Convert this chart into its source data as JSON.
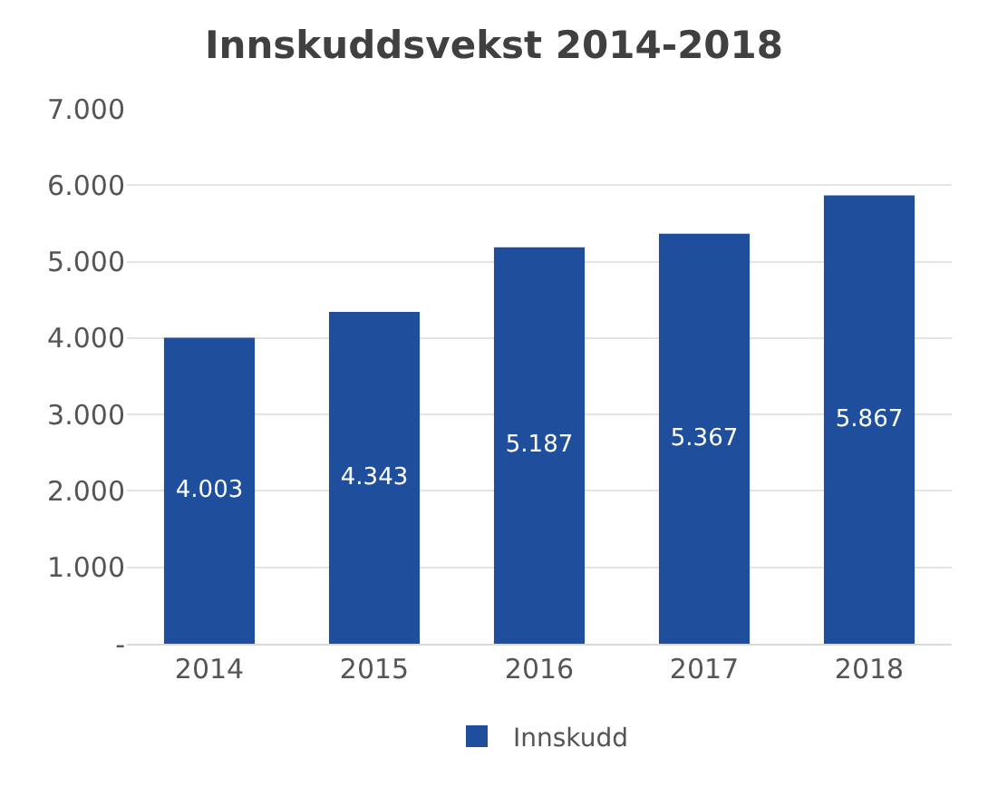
{
  "chart_data": {
    "type": "bar",
    "title": "Innskuddsvekst 2014-2018",
    "categories": [
      "2014",
      "2015",
      "2016",
      "2017",
      "2018"
    ],
    "series": [
      {
        "name": "Innskudd",
        "color": "#1f4e9c",
        "values": [
          4003,
          4343,
          5187,
          5367,
          5867
        ],
        "value_labels": [
          "4.003",
          "4.343",
          "5.187",
          "5.367",
          "5.867"
        ]
      }
    ],
    "ylim": [
      0,
      7000
    ],
    "yticks": [
      {
        "value": 0,
        "label": "-"
      },
      {
        "value": 1000,
        "label": "1.000"
      },
      {
        "value": 2000,
        "label": "2.000"
      },
      {
        "value": 3000,
        "label": "3.000"
      },
      {
        "value": 4000,
        "label": "4.000"
      },
      {
        "value": 5000,
        "label": "5.000"
      },
      {
        "value": 6000,
        "label": "6.000"
      },
      {
        "value": 7000,
        "label": "7.000"
      }
    ],
    "grid": "y",
    "legend": "bottom"
  }
}
